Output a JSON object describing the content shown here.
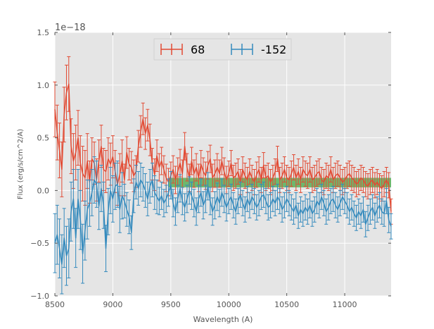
{
  "chart_data": {
    "type": "line",
    "title": "",
    "xlabel": "Wavelength (A)",
    "ylabel": "Flux (erg/s/cm^2/A)",
    "offset_text": "1e−18",
    "xlim": [
      8500,
      11400
    ],
    "ylim": [
      -1.0,
      1.5
    ],
    "x_ticks": [
      8500,
      9000,
      9500,
      10000,
      10500,
      11000
    ],
    "x_tick_labels": [
      "8500",
      "9000",
      "9500",
      "10000",
      "10500",
      "11000"
    ],
    "y_ticks": [
      -1.0,
      -0.5,
      0.0,
      0.5,
      1.0,
      1.5
    ],
    "y_tick_labels": [
      "−1.0",
      "−0.5",
      "0.0",
      "0.5",
      "1.0",
      "1.5"
    ],
    "grid": true,
    "legend_position": "top-center",
    "band": {
      "x0": 9480,
      "x1": 11400,
      "y0": 0.03,
      "y1": 0.12,
      "color": "#2ca02c",
      "label": ""
    },
    "series": [
      {
        "name": "68",
        "color": "#e24a33",
        "x": [
          8500,
          8520,
          8540,
          8560,
          8580,
          8600,
          8620,
          8640,
          8660,
          8680,
          8700,
          8720,
          8740,
          8760,
          8780,
          8800,
          8820,
          8840,
          8860,
          8880,
          8900,
          8920,
          8940,
          8960,
          8980,
          9000,
          9020,
          9040,
          9060,
          9080,
          9100,
          9120,
          9140,
          9160,
          9180,
          9200,
          9220,
          9240,
          9260,
          9280,
          9300,
          9320,
          9340,
          9360,
          9380,
          9400,
          9420,
          9440,
          9460,
          9480,
          9500,
          9520,
          9540,
          9560,
          9580,
          9600,
          9620,
          9640,
          9660,
          9680,
          9700,
          9720,
          9740,
          9760,
          9780,
          9800,
          9820,
          9840,
          9860,
          9880,
          9900,
          9920,
          9940,
          9960,
          9980,
          10000,
          10020,
          10040,
          10060,
          10080,
          10100,
          10120,
          10140,
          10160,
          10180,
          10200,
          10220,
          10240,
          10260,
          10280,
          10300,
          10320,
          10340,
          10360,
          10380,
          10400,
          10420,
          10440,
          10460,
          10480,
          10500,
          10520,
          10540,
          10560,
          10580,
          10600,
          10620,
          10640,
          10660,
          10680,
          10700,
          10720,
          10740,
          10760,
          10780,
          10800,
          10820,
          10840,
          10860,
          10880,
          10900,
          10920,
          10940,
          10960,
          10980,
          11000,
          11020,
          11040,
          11060,
          11080,
          11100,
          11120,
          11140,
          11160,
          11180,
          11200,
          11220,
          11240,
          11260,
          11280,
          11300,
          11320,
          11340,
          11360,
          11380,
          11400
        ],
        "values": [
          0.77,
          0.55,
          0.38,
          0.2,
          0.72,
          0.93,
          1.01,
          0.42,
          0.28,
          0.36,
          0.5,
          0.26,
          0.16,
          0.12,
          0.28,
          0.08,
          0.3,
          0.26,
          0.1,
          0.28,
          0.42,
          0.2,
          0.18,
          0.3,
          0.25,
          0.32,
          0.18,
          0.06,
          0.15,
          0.28,
          0.1,
          0.36,
          0.25,
          0.22,
          0.14,
          0.18,
          0.42,
          0.56,
          0.68,
          0.54,
          0.62,
          0.48,
          0.25,
          0.15,
          0.33,
          0.22,
          0.28,
          0.2,
          0.12,
          0.08,
          0.14,
          0.2,
          0.1,
          0.18,
          0.26,
          0.16,
          0.42,
          0.22,
          0.12,
          0.28,
          0.16,
          0.22,
          0.12,
          0.25,
          0.18,
          0.14,
          0.24,
          0.3,
          0.12,
          0.16,
          0.22,
          0.16,
          0.28,
          0.18,
          0.1,
          0.16,
          0.26,
          0.12,
          0.14,
          0.18,
          0.08,
          0.2,
          0.14,
          0.1,
          0.18,
          0.12,
          0.08,
          0.15,
          0.2,
          0.1,
          0.24,
          0.12,
          0.14,
          0.08,
          0.12,
          0.18,
          0.3,
          0.1,
          0.14,
          0.2,
          0.12,
          0.1,
          0.16,
          0.22,
          0.12,
          0.18,
          0.1,
          0.2,
          0.16,
          0.14,
          0.2,
          0.1,
          0.12,
          0.16,
          0.18,
          0.1,
          0.08,
          0.14,
          0.12,
          0.2,
          0.1,
          0.14,
          0.16,
          0.12,
          0.08,
          0.1,
          0.14,
          0.16,
          0.12,
          0.1,
          0.06,
          0.08,
          0.12,
          0.1,
          0.06,
          0.04,
          0.08,
          0.1,
          0.05,
          0.08,
          0.04,
          0.02,
          0.06,
          0.1,
          0.05,
          -0.2
        ],
        "errors": [
          0.26,
          0.26,
          0.26,
          0.26,
          0.26,
          0.26,
          0.26,
          0.26,
          0.26,
          0.26,
          0.26,
          0.26,
          0.26,
          0.26,
          0.26,
          0.2,
          0.2,
          0.2,
          0.2,
          0.2,
          0.2,
          0.2,
          0.2,
          0.2,
          0.2,
          0.2,
          0.2,
          0.2,
          0.2,
          0.2,
          0.15,
          0.15,
          0.15,
          0.15,
          0.15,
          0.15,
          0.15,
          0.15,
          0.15,
          0.15,
          0.15,
          0.15,
          0.15,
          0.15,
          0.15,
          0.13,
          0.13,
          0.13,
          0.13,
          0.13,
          0.13,
          0.13,
          0.13,
          0.13,
          0.13,
          0.13,
          0.13,
          0.13,
          0.13,
          0.13,
          0.13,
          0.13,
          0.13,
          0.13,
          0.13,
          0.13,
          0.13,
          0.13,
          0.13,
          0.13,
          0.13,
          0.13,
          0.13,
          0.13,
          0.13,
          0.12,
          0.12,
          0.12,
          0.12,
          0.12,
          0.12,
          0.12,
          0.12,
          0.12,
          0.12,
          0.12,
          0.12,
          0.12,
          0.12,
          0.12,
          0.12,
          0.12,
          0.12,
          0.12,
          0.12,
          0.12,
          0.12,
          0.12,
          0.12,
          0.12,
          0.12,
          0.12,
          0.12,
          0.12,
          0.12,
          0.12,
          0.12,
          0.12,
          0.12,
          0.12,
          0.12,
          0.12,
          0.12,
          0.12,
          0.12,
          0.12,
          0.12,
          0.12,
          0.12,
          0.12,
          0.12,
          0.12,
          0.12,
          0.12,
          0.12,
          0.12,
          0.12,
          0.12,
          0.12,
          0.12,
          0.12,
          0.12,
          0.12,
          0.12,
          0.12,
          0.12,
          0.12,
          0.12,
          0.12,
          0.12,
          0.12,
          0.12,
          0.12,
          0.12,
          0.12,
          0.12
        ]
      },
      {
        "name": "-152",
        "color": "#348abd",
        "x": [
          8500,
          8520,
          8540,
          8560,
          8580,
          8600,
          8620,
          8640,
          8660,
          8680,
          8700,
          8720,
          8740,
          8760,
          8780,
          8800,
          8820,
          8840,
          8860,
          8880,
          8900,
          8920,
          8940,
          8960,
          8980,
          9000,
          9020,
          9040,
          9060,
          9080,
          9100,
          9120,
          9140,
          9160,
          9180,
          9200,
          9220,
          9240,
          9260,
          9280,
          9300,
          9320,
          9340,
          9360,
          9380,
          9400,
          9420,
          9440,
          9460,
          9480,
          9500,
          9520,
          9540,
          9560,
          9580,
          9600,
          9620,
          9640,
          9660,
          9680,
          9700,
          9720,
          9740,
          9760,
          9780,
          9800,
          9820,
          9840,
          9860,
          9880,
          9900,
          9920,
          9940,
          9960,
          9980,
          10000,
          10020,
          10040,
          10060,
          10080,
          10100,
          10120,
          10140,
          10160,
          10180,
          10200,
          10220,
          10240,
          10260,
          10280,
          10300,
          10320,
          10340,
          10360,
          10380,
          10400,
          10420,
          10440,
          10460,
          10480,
          10500,
          10520,
          10540,
          10560,
          10580,
          10600,
          10620,
          10640,
          10660,
          10680,
          10700,
          10720,
          10740,
          10760,
          10780,
          10800,
          10820,
          10840,
          10860,
          10880,
          10900,
          10920,
          10940,
          10960,
          10980,
          11000,
          11020,
          11040,
          11060,
          11080,
          11100,
          11120,
          11140,
          11160,
          11180,
          11200,
          11220,
          11240,
          11260,
          11280,
          11300,
          11320,
          11340,
          11360,
          11380,
          11400
        ],
        "values": [
          -0.5,
          -0.42,
          -0.55,
          -0.7,
          -0.45,
          -0.62,
          -0.55,
          -0.2,
          -0.08,
          -0.45,
          -0.08,
          -0.28,
          -0.6,
          -0.38,
          -0.18,
          -0.12,
          -0.02,
          0.1,
          0.06,
          -0.15,
          0.02,
          -0.14,
          -0.55,
          -0.2,
          0.0,
          -0.08,
          0.04,
          0.06,
          -0.18,
          -0.05,
          -0.1,
          -0.18,
          -0.25,
          -0.4,
          -0.05,
          0.08,
          0.02,
          0.1,
          0.06,
          0.0,
          -0.08,
          0.04,
          0.1,
          -0.02,
          -0.06,
          -0.1,
          -0.05,
          -0.12,
          -0.08,
          -0.02,
          0.05,
          -0.12,
          -0.2,
          -0.08,
          0.02,
          -0.1,
          -0.16,
          -0.08,
          0.0,
          -0.05,
          -0.12,
          -0.2,
          -0.08,
          -0.02,
          -0.14,
          -0.08,
          0.04,
          -0.1,
          -0.2,
          -0.14,
          -0.06,
          -0.12,
          -0.02,
          -0.08,
          -0.16,
          -0.1,
          -0.06,
          -0.14,
          -0.2,
          -0.1,
          -0.04,
          -0.12,
          -0.18,
          -0.08,
          -0.14,
          -0.06,
          -0.1,
          -0.16,
          -0.12,
          -0.06,
          -0.04,
          -0.1,
          -0.16,
          -0.14,
          -0.08,
          -0.12,
          -0.06,
          -0.1,
          -0.18,
          -0.14,
          -0.08,
          -0.12,
          -0.16,
          -0.2,
          -0.14,
          -0.24,
          -0.18,
          -0.22,
          -0.16,
          -0.2,
          -0.14,
          -0.22,
          -0.18,
          -0.1,
          -0.14,
          -0.06,
          -0.12,
          -0.2,
          -0.16,
          -0.1,
          -0.08,
          -0.14,
          -0.18,
          -0.12,
          -0.06,
          -0.1,
          -0.14,
          -0.2,
          -0.16,
          -0.22,
          -0.26,
          -0.2,
          -0.24,
          -0.18,
          -0.32,
          -0.26,
          -0.2,
          -0.16,
          -0.24,
          -0.18,
          -0.14,
          -0.2,
          -0.22,
          -0.1,
          -0.28,
          -0.34
        ],
        "errors": [
          0.28,
          0.28,
          0.28,
          0.28,
          0.28,
          0.28,
          0.28,
          0.28,
          0.28,
          0.28,
          0.28,
          0.28,
          0.28,
          0.28,
          0.28,
          0.22,
          0.22,
          0.22,
          0.22,
          0.22,
          0.22,
          0.22,
          0.22,
          0.22,
          0.22,
          0.22,
          0.22,
          0.22,
          0.22,
          0.22,
          0.16,
          0.16,
          0.16,
          0.16,
          0.16,
          0.16,
          0.16,
          0.16,
          0.16,
          0.16,
          0.16,
          0.16,
          0.16,
          0.16,
          0.16,
          0.13,
          0.13,
          0.13,
          0.13,
          0.13,
          0.13,
          0.13,
          0.13,
          0.13,
          0.13,
          0.13,
          0.13,
          0.13,
          0.13,
          0.13,
          0.13,
          0.13,
          0.13,
          0.13,
          0.13,
          0.13,
          0.13,
          0.13,
          0.13,
          0.13,
          0.13,
          0.13,
          0.13,
          0.13,
          0.13,
          0.12,
          0.12,
          0.12,
          0.12,
          0.12,
          0.12,
          0.12,
          0.12,
          0.12,
          0.12,
          0.12,
          0.12,
          0.12,
          0.12,
          0.12,
          0.12,
          0.12,
          0.12,
          0.12,
          0.12,
          0.12,
          0.12,
          0.12,
          0.12,
          0.12,
          0.12,
          0.12,
          0.12,
          0.12,
          0.12,
          0.12,
          0.12,
          0.12,
          0.12,
          0.12,
          0.12,
          0.12,
          0.12,
          0.12,
          0.12,
          0.12,
          0.12,
          0.12,
          0.12,
          0.12,
          0.12,
          0.12,
          0.12,
          0.12,
          0.12,
          0.12,
          0.12,
          0.12,
          0.12,
          0.12,
          0.12,
          0.12,
          0.12,
          0.12,
          0.12,
          0.12,
          0.12,
          0.12,
          0.12,
          0.12,
          0.12,
          0.12,
          0.12,
          0.12,
          0.12,
          0.12
        ]
      }
    ]
  }
}
